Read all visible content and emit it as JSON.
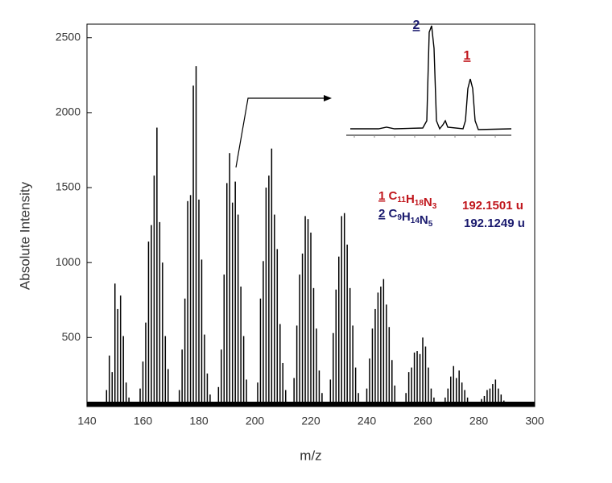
{
  "chart_data": {
    "type": "stick",
    "xlabel": "m/z",
    "ylabel": "Absolute Intensity",
    "xlim": [
      140,
      300
    ],
    "ylim": [
      40,
      2590
    ],
    "xticks": [
      140,
      160,
      180,
      200,
      220,
      240,
      260,
      280,
      300
    ],
    "yticks": [
      500,
      1000,
      1500,
      2000,
      2500
    ],
    "color": "#000000",
    "x": [
      147,
      148,
      149,
      150,
      151,
      152,
      153,
      154,
      155,
      159,
      160,
      161,
      162,
      163,
      164,
      165,
      166,
      167,
      168,
      169,
      173,
      174,
      175,
      176,
      177,
      178,
      179,
      180,
      181,
      182,
      183,
      184,
      187,
      188,
      189,
      190,
      191,
      192,
      193,
      194,
      195,
      196,
      197,
      201,
      202,
      203,
      204,
      205,
      206,
      207,
      208,
      209,
      210,
      211,
      214,
      215,
      216,
      217,
      218,
      219,
      220,
      221,
      222,
      223,
      224,
      227,
      228,
      229,
      230,
      231,
      232,
      233,
      234,
      235,
      236,
      237,
      240,
      241,
      242,
      243,
      244,
      245,
      246,
      247,
      248,
      249,
      250,
      254,
      255,
      256,
      257,
      258,
      259,
      260,
      261,
      262,
      263,
      264,
      268,
      269,
      270,
      271,
      272,
      273,
      274,
      275,
      276,
      281,
      282,
      283,
      284,
      285,
      286,
      287,
      288,
      289
    ],
    "values": [
      150,
      380,
      270,
      860,
      690,
      780,
      510,
      200,
      100,
      160,
      340,
      600,
      1140,
      1250,
      1580,
      1900,
      1270,
      1000,
      510,
      290,
      150,
      420,
      760,
      1410,
      1450,
      2180,
      2310,
      1420,
      1020,
      520,
      260,
      120,
      170,
      420,
      920,
      1530,
      1730,
      1400,
      1540,
      1320,
      840,
      510,
      220,
      200,
      760,
      1010,
      1500,
      1580,
      1760,
      1320,
      1090,
      590,
      330,
      150,
      230,
      580,
      920,
      1060,
      1310,
      1290,
      1200,
      830,
      560,
      280,
      130,
      220,
      530,
      820,
      1040,
      1310,
      1330,
      1120,
      830,
      580,
      300,
      130,
      160,
      360,
      560,
      690,
      800,
      840,
      890,
      720,
      570,
      350,
      180,
      130,
      270,
      300,
      400,
      410,
      390,
      500,
      440,
      300,
      160,
      100,
      100,
      160,
      240,
      310,
      230,
      280,
      200,
      150,
      100,
      90,
      110,
      150,
      160,
      190,
      220,
      160,
      120,
      80
    ],
    "inset_labels": [
      {
        "text": "2",
        "color": "#1a1a6e"
      },
      {
        "text": "1",
        "color": "#c0161c"
      }
    ],
    "annotations": [
      {
        "index": "1",
        "color": "#c0161c",
        "formula": [
          {
            "el": "C",
            "n": "11"
          },
          {
            "el": "H",
            "n": "18"
          },
          {
            "el": "N",
            "n": "3"
          }
        ],
        "mass": "192.1501 u"
      },
      {
        "index": "2",
        "color": "#1a1a6e",
        "formula": [
          {
            "el": "C",
            "n": "9"
          },
          {
            "el": "H",
            "n": "14"
          },
          {
            "el": "N",
            "n": "5"
          }
        ],
        "mass": "192.1249 u"
      }
    ]
  }
}
